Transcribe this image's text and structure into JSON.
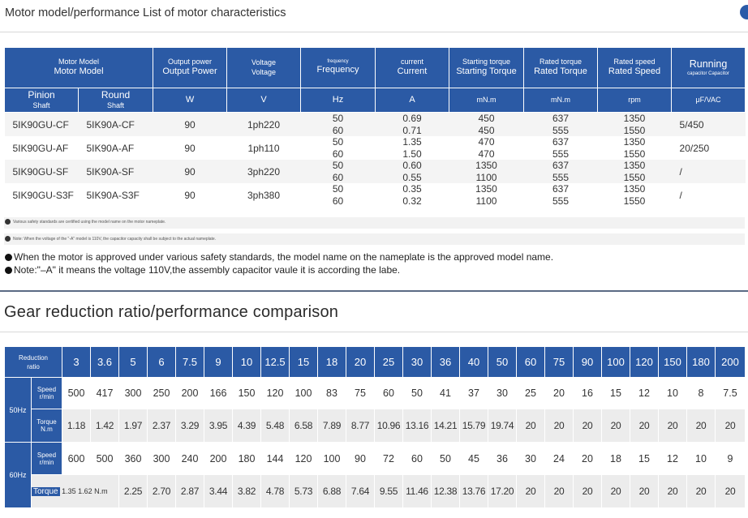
{
  "page": {
    "title": "Motor model/performance List of motor characteristics",
    "gear_title": "Gear reduction ratio/performance comparison"
  },
  "motor_table": {
    "header": {
      "model_en": "Motor Model",
      "model": "Motor Model",
      "power_en": "Output power",
      "power": "Output Power",
      "voltage_en": "Voltage",
      "voltage": "Voltage",
      "freq_en": "frequency",
      "freq": "Frequency",
      "current_en": "current",
      "current": "Current",
      "start_en": "Starting torque",
      "start": "Starting Torque",
      "rated_en": "Rated torque",
      "rated": "Rated Torque",
      "speed_en": "Rated speed",
      "speed": "Rated Speed",
      "running": "Running",
      "running_sub": "capacitor Capacitor"
    },
    "subheader": {
      "pinion": "Pinion",
      "pinion_sub": "Shaft",
      "round": "Round",
      "round_sub": "Shaft",
      "w": "W",
      "v": "V",
      "hz": "Hz",
      "a": "A",
      "mnm1": "mN.m",
      "mnm2": "mN.m",
      "rpm": "rpm",
      "cap": "μF/VAC"
    },
    "rows": [
      {
        "pinion": "5IK90GU-CF",
        "round": "5IK90A-CF",
        "w": "90",
        "v": "1ph220",
        "hz": [
          "50",
          "60"
        ],
        "a": [
          "0.69",
          "0.71"
        ],
        "start": [
          "450",
          "450"
        ],
        "rated": [
          "637",
          "555"
        ],
        "rpm": [
          "1350",
          "1550"
        ],
        "cap": "5/450"
      },
      {
        "pinion": "5IK90GU-AF",
        "round": "5IK90A-AF",
        "w": "90",
        "v": "1ph110",
        "hz": [
          "50",
          "60"
        ],
        "a": [
          "1.35",
          "1.50"
        ],
        "start": [
          "470",
          "470"
        ],
        "rated": [
          "637",
          "555"
        ],
        "rpm": [
          "1350",
          "1550"
        ],
        "cap": "20/250"
      },
      {
        "pinion": "5IK90GU-SF",
        "round": "5IK90A-SF",
        "w": "90",
        "v": "3ph220",
        "hz": [
          "50",
          "60"
        ],
        "a": [
          "0.60",
          "0.55"
        ],
        "start": [
          "1350",
          "1100"
        ],
        "rated": [
          "637",
          "555"
        ],
        "rpm": [
          "1350",
          "1550"
        ],
        "cap": "/"
      },
      {
        "pinion": "5IK90GU-S3F",
        "round": "5IK90A-S3F",
        "w": "90",
        "v": "3ph380",
        "hz": [
          "50",
          "60"
        ],
        "a": [
          "0.35",
          "0.32"
        ],
        "start": [
          "1350",
          "1100"
        ],
        "rated": [
          "637",
          "555"
        ],
        "rpm": [
          "1350",
          "1550"
        ],
        "cap": "/"
      }
    ]
  },
  "notes": {
    "small_1": "Various safety standards are certified using the model name on the motor nameplate.",
    "small_2": "Note: When the voltage of the \"-A\" model is 110V, the capacitor capacity shall be subject to the actual nameplate.",
    "big_1": "When the motor is approved under various safety standards, the model name on the nameplate is the approved model name.",
    "big_2": "Note:\"–A\" it means the voltage 110V,the assembly capacitor vaule it is according the labe."
  },
  "gear_table": {
    "ratio_label_1": "Reduction",
    "ratio_label_2": "ratio",
    "ratios": [
      "3",
      "3.6",
      "5",
      "6",
      "7.5",
      "9",
      "10",
      "12.5",
      "15",
      "18",
      "20",
      "25",
      "30",
      "36",
      "40",
      "50",
      "60",
      "75",
      "90",
      "100",
      "120",
      "150",
      "180",
      "200"
    ],
    "hz50": "50Hz",
    "hz60": "60Hz",
    "speed_label_1": "Speed",
    "speed_label_2": "r/min",
    "torque_label_1": "Torque",
    "torque_label_2": "N.m",
    "speed_50": [
      "500",
      "417",
      "300",
      "250",
      "200",
      "166",
      "150",
      "120",
      "100",
      "83",
      "75",
      "60",
      "50",
      "41",
      "37",
      "30",
      "25",
      "20",
      "16",
      "15",
      "12",
      "10",
      "8",
      "7.5"
    ],
    "torque_50": [
      "1.18",
      "1.42",
      "1.97",
      "2.37",
      "3.29",
      "3.95",
      "4.39",
      "5.48",
      "6.58",
      "7.89",
      "8.77",
      "10.96",
      "13.16",
      "14.21",
      "15.79",
      "19.74",
      "20",
      "20",
      "20",
      "20",
      "20",
      "20",
      "20",
      "20"
    ],
    "speed_60": [
      "600",
      "500",
      "360",
      "300",
      "240",
      "200",
      "180",
      "144",
      "120",
      "100",
      "90",
      "72",
      "60",
      "50",
      "45",
      "36",
      "30",
      "24",
      "20",
      "18",
      "15",
      "12",
      "10",
      "9"
    ],
    "torque_60_mixed_label": "Torque",
    "torque_60_mixed_values": "1.35 1.62 N.m",
    "torque_60": [
      "2.25",
      "2.70",
      "2.87",
      "3.44",
      "3.82",
      "4.78",
      "5.73",
      "6.88",
      "7.64",
      "9.55",
      "11.46",
      "12.38",
      "13.76",
      "17.20",
      "20",
      "20",
      "20",
      "20",
      "20",
      "20",
      "20",
      "20"
    ]
  }
}
